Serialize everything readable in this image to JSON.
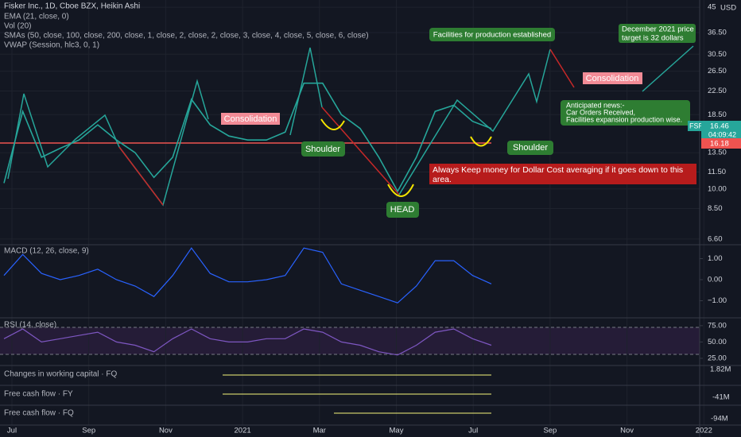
{
  "header": {
    "lines": [
      "Fisker Inc., 1D, Cboe BZX, Heikin Ashi",
      "EMA (21, close, 0)",
      "Vol (20)",
      "SMAs (50, close, 100, close, 200, close, 1, close, 2, close, 2, close, 3, close, 4, close, 5, close, 6, close)",
      "VWAP (Session, hlc3, 0, 1)"
    ]
  },
  "currency": "USD",
  "chart_data": {
    "type": "line",
    "log_scale": true,
    "color": "#26a69a",
    "values": [
      10.5,
      19,
      13,
      14,
      15,
      17,
      15,
      13.5,
      11,
      13,
      21,
      17,
      15.5,
      15,
      15,
      16,
      24,
      24,
      18.5,
      16.5,
      13,
      9.8,
      13,
      19,
      20,
      17.5,
      16.5
    ],
    "ylim": [
      6.3,
      47.8
    ],
    "yticks": [
      45,
      {
        "value": 36.5,
        "label": "36.50"
      },
      {
        "value": 30.5,
        "label": "30.50"
      },
      {
        "value": 26.5,
        "label": "26.50"
      },
      {
        "value": 22.5,
        "label": "22.50"
      },
      {
        "value": 18.5,
        "label": "18.50"
      },
      {
        "value": 13.5,
        "label": "13.50"
      },
      {
        "value": 11.5,
        "label": "11.50"
      },
      {
        "value": 10,
        "label": "10.00"
      },
      {
        "value": 8.5,
        "label": "8.50"
      },
      {
        "value": 6.6,
        "label": "6.60"
      }
    ],
    "grid": true,
    "xticks": [
      "Jul",
      "Sep",
      "Nov",
      "2021",
      "Mar",
      "May",
      "Jul",
      "Sep",
      "Nov",
      "2022"
    ]
  },
  "price_labels": {
    "symbol": "FSR",
    "last": "16.46",
    "countdown": "04:09:42",
    "prev": "16.18"
  },
  "macd": {
    "title": "MACD (12, 26, close, 9)",
    "color": "#2962ff",
    "values": [
      0.2,
      1.2,
      0.3,
      0,
      0.2,
      0.5,
      0,
      -0.3,
      -0.8,
      0.2,
      1.5,
      0.3,
      -0.1,
      -0.1,
      0,
      0.2,
      1.5,
      1.3,
      -0.2,
      -0.5,
      -0.8,
      -1.1,
      -0.3,
      0.9,
      0.9,
      0.2,
      -0.2
    ],
    "ylim": [
      -1.81,
      1.66
    ],
    "yticks": [
      {
        "value": 1,
        "label": "1.00"
      },
      {
        "value": 0,
        "label": "0.00"
      },
      {
        "value": -1,
        "label": "−1.00"
      }
    ]
  },
  "rsi": {
    "title": "RSI (14, close)",
    "color": "#7e57c2",
    "values": [
      55,
      70,
      50,
      55,
      60,
      65,
      50,
      45,
      35,
      55,
      70,
      55,
      50,
      50,
      55,
      55,
      70,
      65,
      50,
      45,
      35,
      30,
      45,
      65,
      70,
      55,
      45
    ],
    "ylim": [
      14,
      87
    ],
    "yticks": [
      {
        "value": 75,
        "label": "75.00"
      },
      {
        "value": 50,
        "label": "50.00"
      },
      {
        "value": 25,
        "label": "25.00"
      }
    ]
  },
  "fundamentals": [
    {
      "title": "Changes in working capital · FQ",
      "value": "1.82M"
    },
    {
      "title": "Free cash flow · FY",
      "value": "-41M"
    },
    {
      "title": "Free cash flow · FQ",
      "value": "-94M"
    }
  ],
  "annotations": {
    "consolidation_1": "Consolidation",
    "consolidation_2": "Consolidation",
    "shoulder_left": "Shoulder",
    "shoulder_right": "Shoulder",
    "head": "HEAD",
    "facilities": "Facilities for production established",
    "target": [
      "December 2021 price",
      "target is 32 dollars"
    ],
    "news": [
      "Anticipated news:-",
      "Car Orders Received,",
      "Facilities expansion production wise."
    ],
    "warning": [
      "Always Keep money for Dollar Cost averaging if it goes down to this",
      "area."
    ]
  }
}
